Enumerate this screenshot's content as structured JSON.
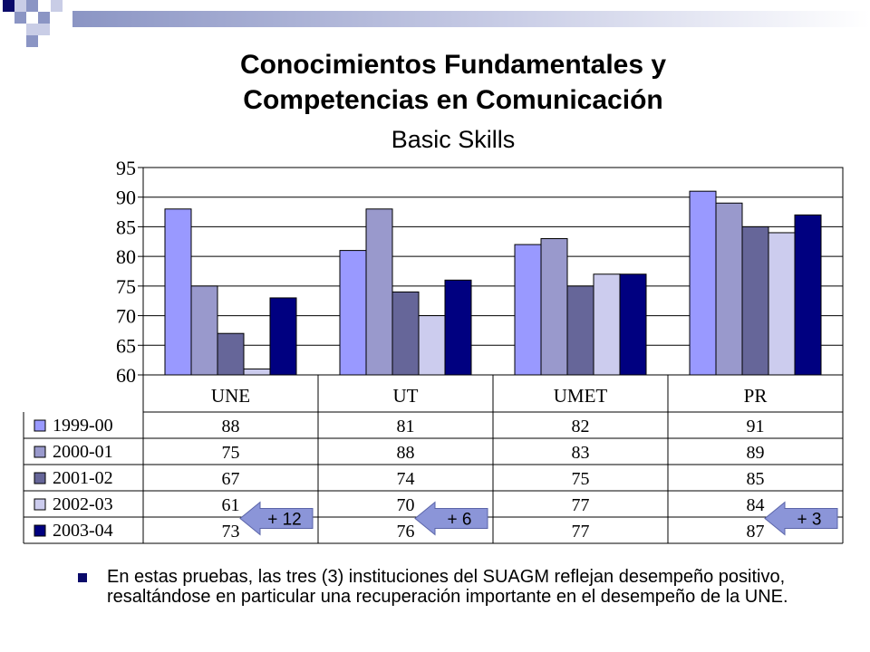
{
  "slide": {
    "title_line1": "Conocimientos Fundamentales y",
    "title_line2": "Competencias en Comunicación",
    "subtitle": "Basic Skills",
    "bullet_text": "En estas pruebas, las tres (3) instituciones del SUAGM reflejan desempeño positivo, resaltándose en particular una recuperación importante en el desempeño de la UNE."
  },
  "colors": {
    "accent_dark": "#0a0a6a",
    "accent_light": "#8b95c4",
    "arrow": "#8b95d8"
  },
  "chart_data": {
    "type": "bar",
    "categories": [
      "UNE",
      "UT",
      "UMET",
      "PR"
    ],
    "ylim": [
      60,
      95
    ],
    "yticks": [
      60,
      65,
      70,
      75,
      80,
      85,
      90,
      95
    ],
    "grid": true,
    "series": [
      {
        "name": "1999-00",
        "color": "#9999ff",
        "values": [
          88,
          81,
          82,
          91
        ]
      },
      {
        "name": "2000-01",
        "color": "#9999cc",
        "values": [
          75,
          88,
          83,
          89
        ]
      },
      {
        "name": "2001-02",
        "color": "#666699",
        "values": [
          67,
          74,
          75,
          85
        ]
      },
      {
        "name": "2002-03",
        "color": "#ccccee",
        "values": [
          61,
          70,
          77,
          84
        ]
      },
      {
        "name": "2003-04",
        "color": "#000080",
        "values": [
          73,
          76,
          77,
          87
        ]
      }
    ],
    "annotations": [
      {
        "text": "+ 12",
        "category": "UNE"
      },
      {
        "text": "+ 6",
        "category": "UT"
      },
      {
        "text": "+ 3",
        "category": "PR"
      }
    ]
  }
}
